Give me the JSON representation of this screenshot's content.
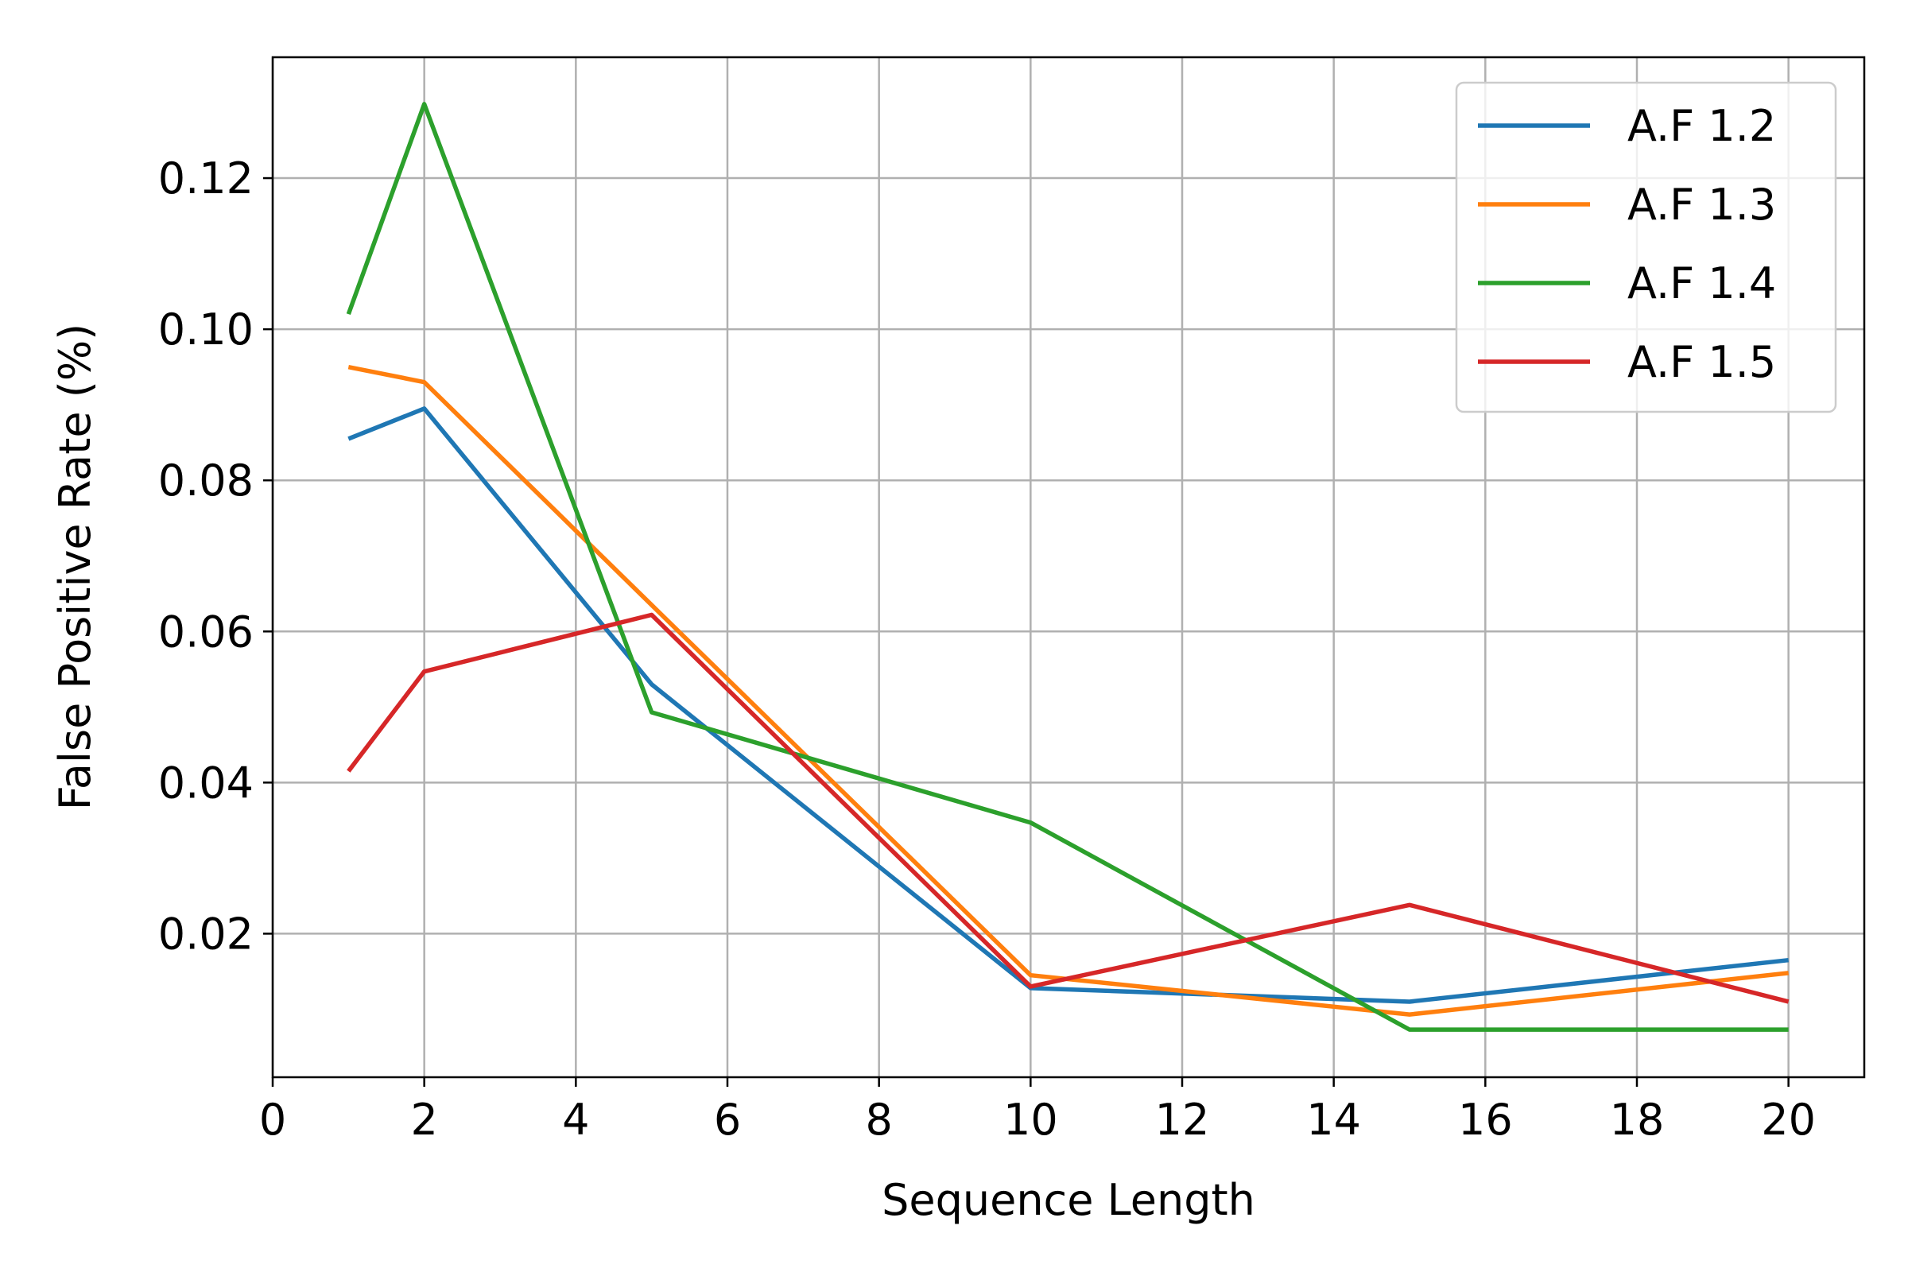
{
  "chart_data": {
    "type": "line",
    "title": "",
    "xlabel": "Sequence Length",
    "ylabel": "False Positive Rate (%)",
    "xlim": [
      0,
      21
    ],
    "ylim": [
      0.001,
      0.136
    ],
    "xticks": [
      0,
      2,
      4,
      6,
      8,
      10,
      12,
      14,
      16,
      18,
      20
    ],
    "yticks": [
      0.02,
      0.04,
      0.06,
      0.08,
      0.1,
      0.12
    ],
    "ytick_labels": [
      "0.02",
      "0.04",
      "0.06",
      "0.08",
      "0.10",
      "0.12"
    ],
    "grid": true,
    "legend_position": "top-right",
    "x": [
      1,
      2,
      5,
      10,
      15,
      20
    ],
    "series": [
      {
        "name": "A.F 1.2",
        "color": "#1f77b4",
        "values": [
          0.0855,
          0.0895,
          0.053,
          0.0128,
          0.011,
          0.0165
        ]
      },
      {
        "name": "A.F 1.3",
        "color": "#ff7f0e",
        "values": [
          0.095,
          0.093,
          0.0635,
          0.0145,
          0.0093,
          0.0148
        ]
      },
      {
        "name": "A.F 1.4",
        "color": "#2ca02c",
        "values": [
          0.102,
          0.1298,
          0.0493,
          0.0347,
          0.0073,
          0.0073
        ]
      },
      {
        "name": "A.F 1.5",
        "color": "#d62728",
        "values": [
          0.0415,
          0.0547,
          0.0622,
          0.013,
          0.0238,
          0.011
        ]
      }
    ]
  }
}
